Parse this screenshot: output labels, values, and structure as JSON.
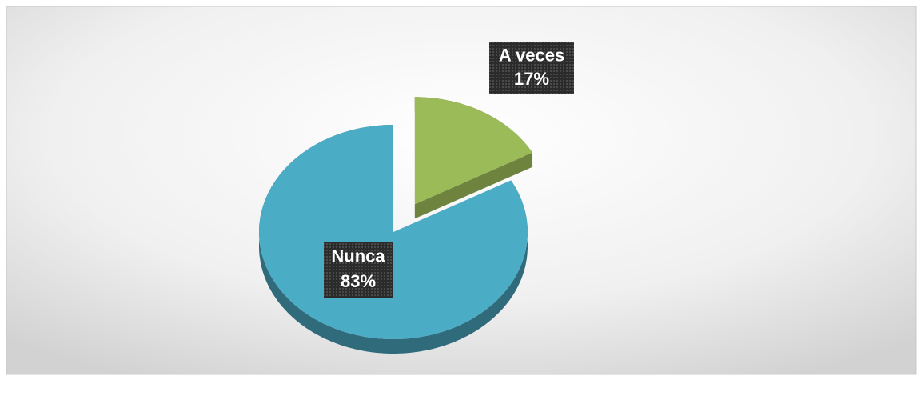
{
  "chart_data": {
    "type": "pie",
    "categories": [
      "A veces",
      "Nunca"
    ],
    "values": [
      17,
      83
    ],
    "value_labels": [
      "17%",
      "83%"
    ],
    "colors": [
      "#9bbb59",
      "#4bacc6"
    ]
  }
}
